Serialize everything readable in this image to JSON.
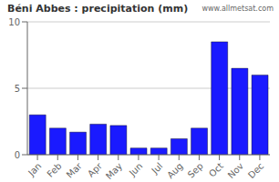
{
  "chart_data": {
    "type": "bar",
    "title": "Béni Abbes : precipitation (mm)",
    "categories": [
      "Jan",
      "Feb",
      "Mar",
      "Apr",
      "May",
      "Jun",
      "Jul",
      "Aug",
      "Sep",
      "Oct",
      "Nov",
      "Dec"
    ],
    "values": [
      3.0,
      2.0,
      1.7,
      2.3,
      2.2,
      0.5,
      0.5,
      1.2,
      2.0,
      8.5,
      6.5,
      6.0
    ],
    "color": "#1a1aff",
    "ylim": [
      0,
      10
    ],
    "yticks": [
      0,
      5,
      10
    ],
    "grid": true,
    "annotations": [
      "www.allmetsat.com"
    ]
  }
}
